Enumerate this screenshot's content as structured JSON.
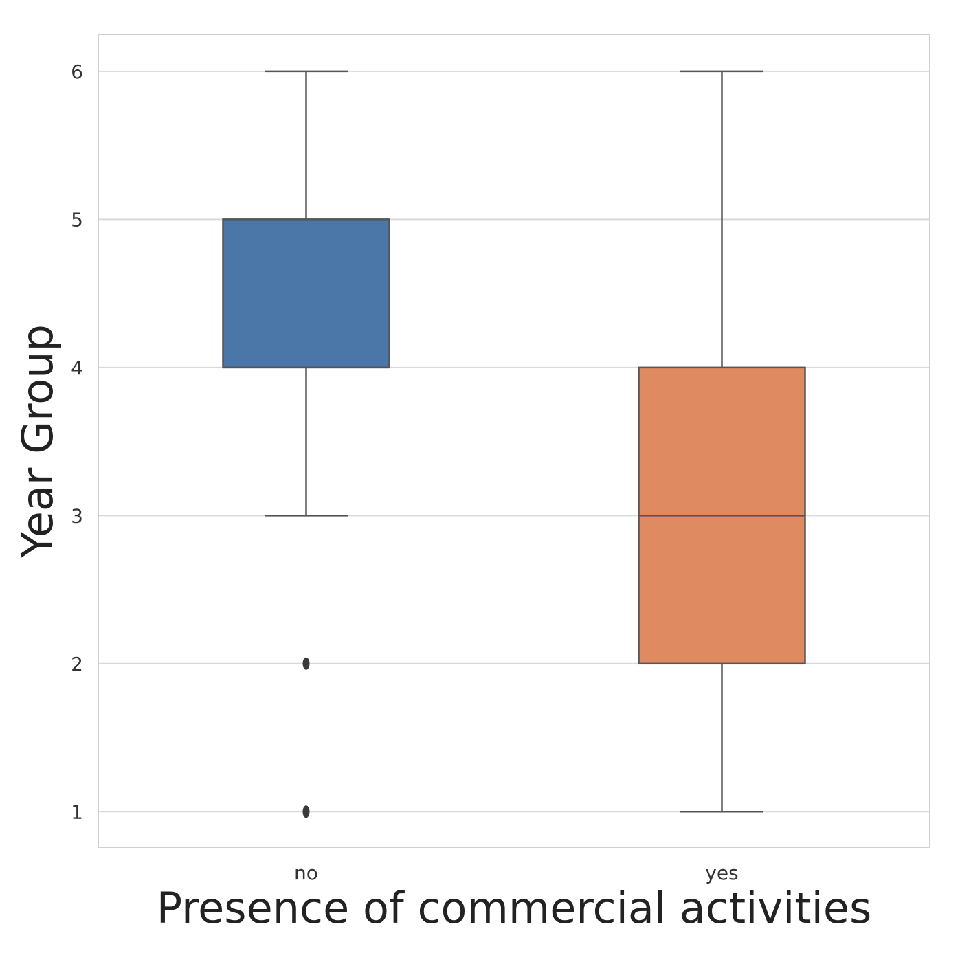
{
  "chart_data": {
    "type": "box",
    "title": "",
    "xlabel": "Presence of commercial activities",
    "ylabel": "Year Group",
    "categories": [
      "no",
      "yes"
    ],
    "ylim": [
      0.76,
      6.25
    ],
    "yticks": [
      1,
      2,
      3,
      4,
      5,
      6
    ],
    "grid": true,
    "boxes": [
      {
        "category": "no",
        "whisker_low": 3,
        "q1": 4,
        "median": 4,
        "q3": 5,
        "whisker_high": 6,
        "outliers": [
          2,
          1
        ],
        "color": "#4a76a8"
      },
      {
        "category": "yes",
        "whisker_low": 1,
        "q1": 2,
        "median": 3,
        "q3": 4,
        "whisker_high": 6,
        "outliers": [],
        "color": "#e08a62"
      }
    ]
  },
  "colors": {
    "line": "#555555",
    "grid": "#d9d9d9",
    "frame": "#d0d0d0",
    "outlier": "#3a3a3a"
  }
}
